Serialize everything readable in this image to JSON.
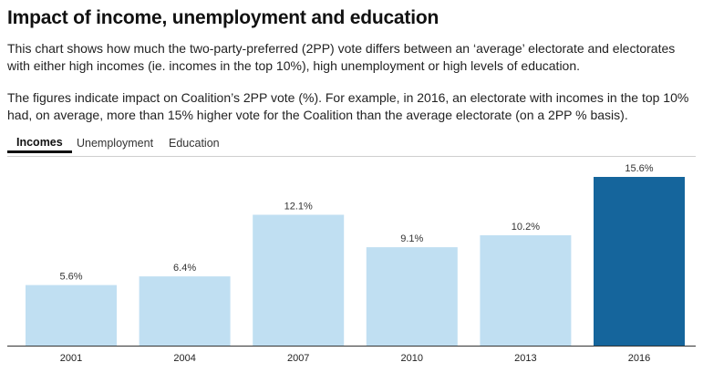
{
  "header": {
    "title": "Impact of income, unemployment and education",
    "description_1": "This chart shows how much the two-party-preferred (2PP) vote differs between an ‘average’ electorate and electorates with either high incomes (ie. incomes in the top 10%), high unemployment or high levels of education.",
    "description_2": "The figures indicate impact on Coalition’s 2PP vote (%). For example, in 2016, an electorate with incomes in the top 10% had, on average, more than 15% higher vote for the Coalition than the average electorate (on a 2PP % basis)."
  },
  "tabs": [
    {
      "label": "Incomes",
      "active": true
    },
    {
      "label": "Unemployment",
      "active": false
    },
    {
      "label": "Education",
      "active": false
    }
  ],
  "chart_data": {
    "type": "bar",
    "categories": [
      "2001",
      "2004",
      "2007",
      "2010",
      "2013",
      "2016"
    ],
    "values": [
      5.6,
      6.4,
      12.1,
      9.1,
      10.2,
      15.6
    ],
    "value_labels": [
      "5.6%",
      "6.4%",
      "12.1%",
      "9.1%",
      "10.2%",
      "15.6%"
    ],
    "ylim": [
      0,
      15.6
    ],
    "grid": false,
    "colors": {
      "default": "#c0dff2",
      "highlight": "#15659c"
    },
    "highlight_index": 5
  }
}
